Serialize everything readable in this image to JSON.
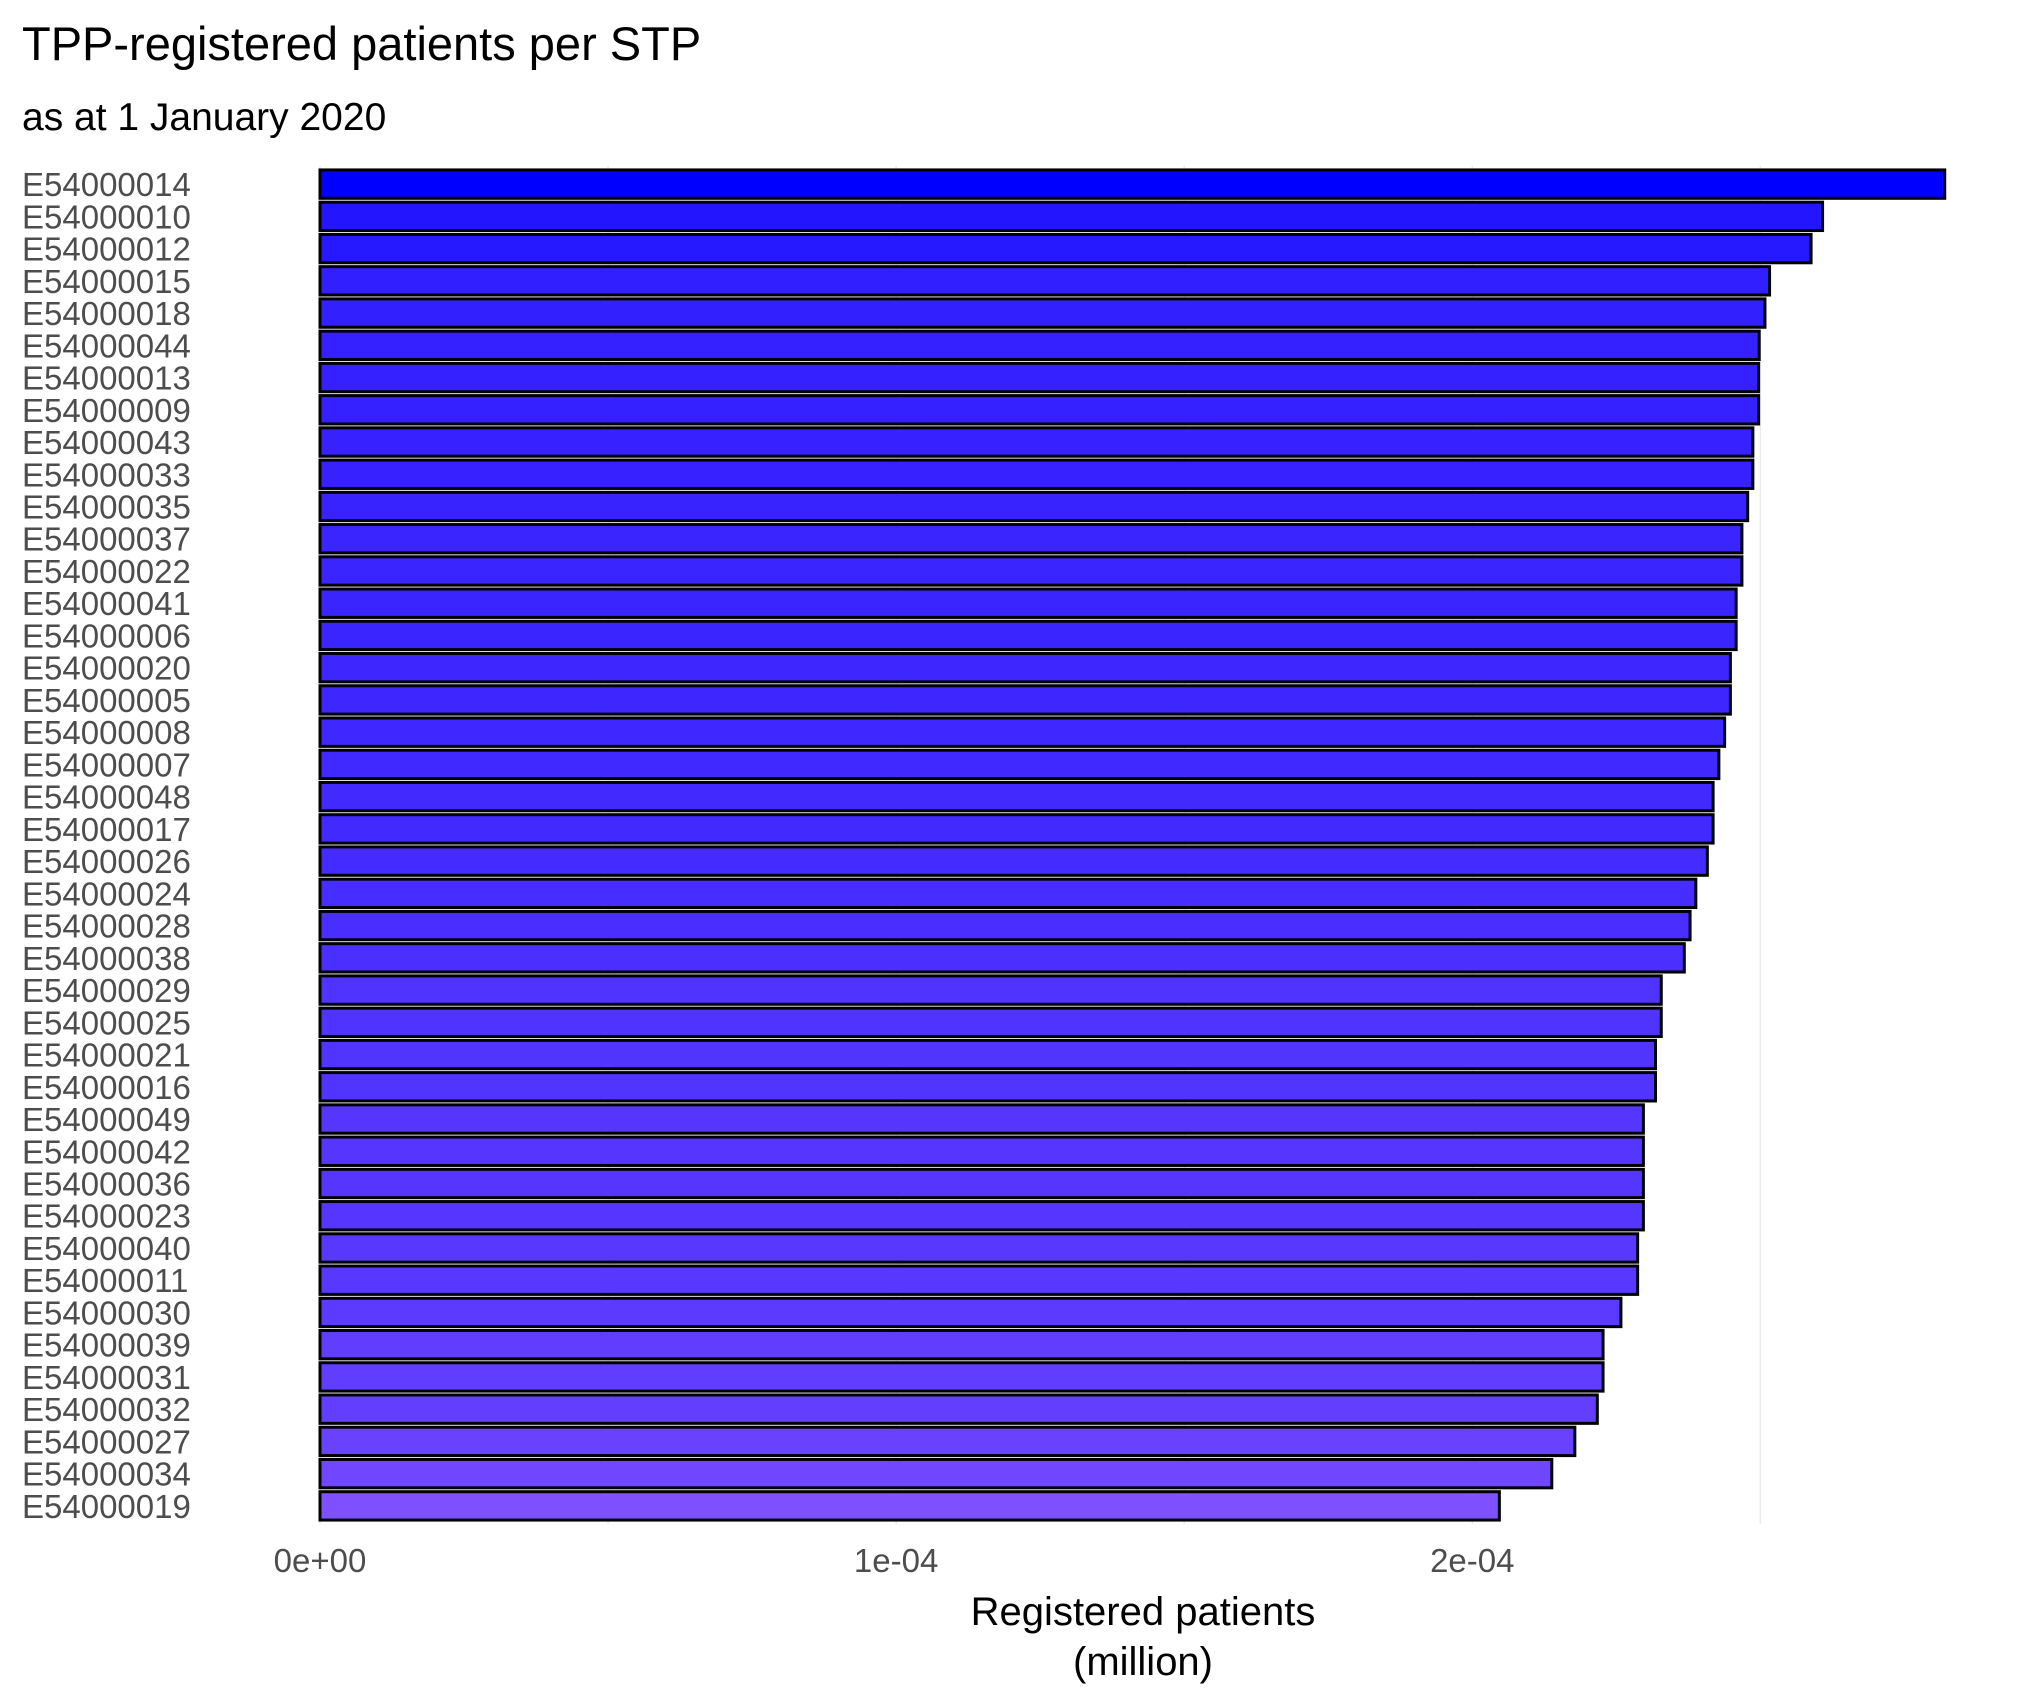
{
  "chart_data": {
    "type": "bar",
    "orientation": "horizontal",
    "title": "TPP-registered patients per STP",
    "subtitle": "as at 1 January 2020",
    "xlabel": [
      "Registered patients",
      "(million)"
    ],
    "ylabel": "",
    "xlim": [
      0,
      0.000285
    ],
    "xticks": [
      0,
      0.0001,
      0.0002
    ],
    "xtick_labels": [
      "0e+00",
      "1e-04",
      "2e-04"
    ],
    "grid": "vertical major",
    "legend": "none",
    "bar_color_range": [
      "#0000ff",
      "#7f50ff"
    ],
    "categories": [
      "E54000014",
      "E54000010",
      "E54000012",
      "E54000015",
      "E54000018",
      "E54000044",
      "E54000013",
      "E54000009",
      "E54000043",
      "E54000033",
      "E54000035",
      "E54000037",
      "E54000022",
      "E54000041",
      "E54000006",
      "E54000020",
      "E54000005",
      "E54000008",
      "E54000007",
      "E54000048",
      "E54000017",
      "E54000026",
      "E54000024",
      "E54000028",
      "E54000038",
      "E54000029",
      "E54000025",
      "E54000021",
      "E54000016",
      "E54000049",
      "E54000042",
      "E54000036",
      "E54000023",
      "E54000040",
      "E54000011",
      "E54000030",
      "E54000039",
      "E54000031",
      "E54000032",
      "E54000027",
      "E54000034",
      "E54000019"
    ],
    "values": [
      0.000282,
      0.0002608,
      0.0002588,
      0.0002516,
      0.0002508,
      0.0002498,
      0.0002497,
      0.0002497,
      0.0002487,
      0.0002487,
      0.0002478,
      0.0002468,
      0.0002468,
      0.0002458,
      0.0002458,
      0.0002448,
      0.0002448,
      0.0002438,
      0.0002428,
      0.0002418,
      0.0002418,
      0.0002408,
      0.0002388,
      0.0002378,
      0.0002368,
      0.0002328,
      0.0002328,
      0.0002318,
      0.0002318,
      0.0002297,
      0.0002297,
      0.0002297,
      0.0002297,
      0.0002287,
      0.0002287,
      0.0002258,
      0.0002227,
      0.0002227,
      0.0002217,
      0.0002178,
      0.0002138,
      0.0002047
    ]
  }
}
